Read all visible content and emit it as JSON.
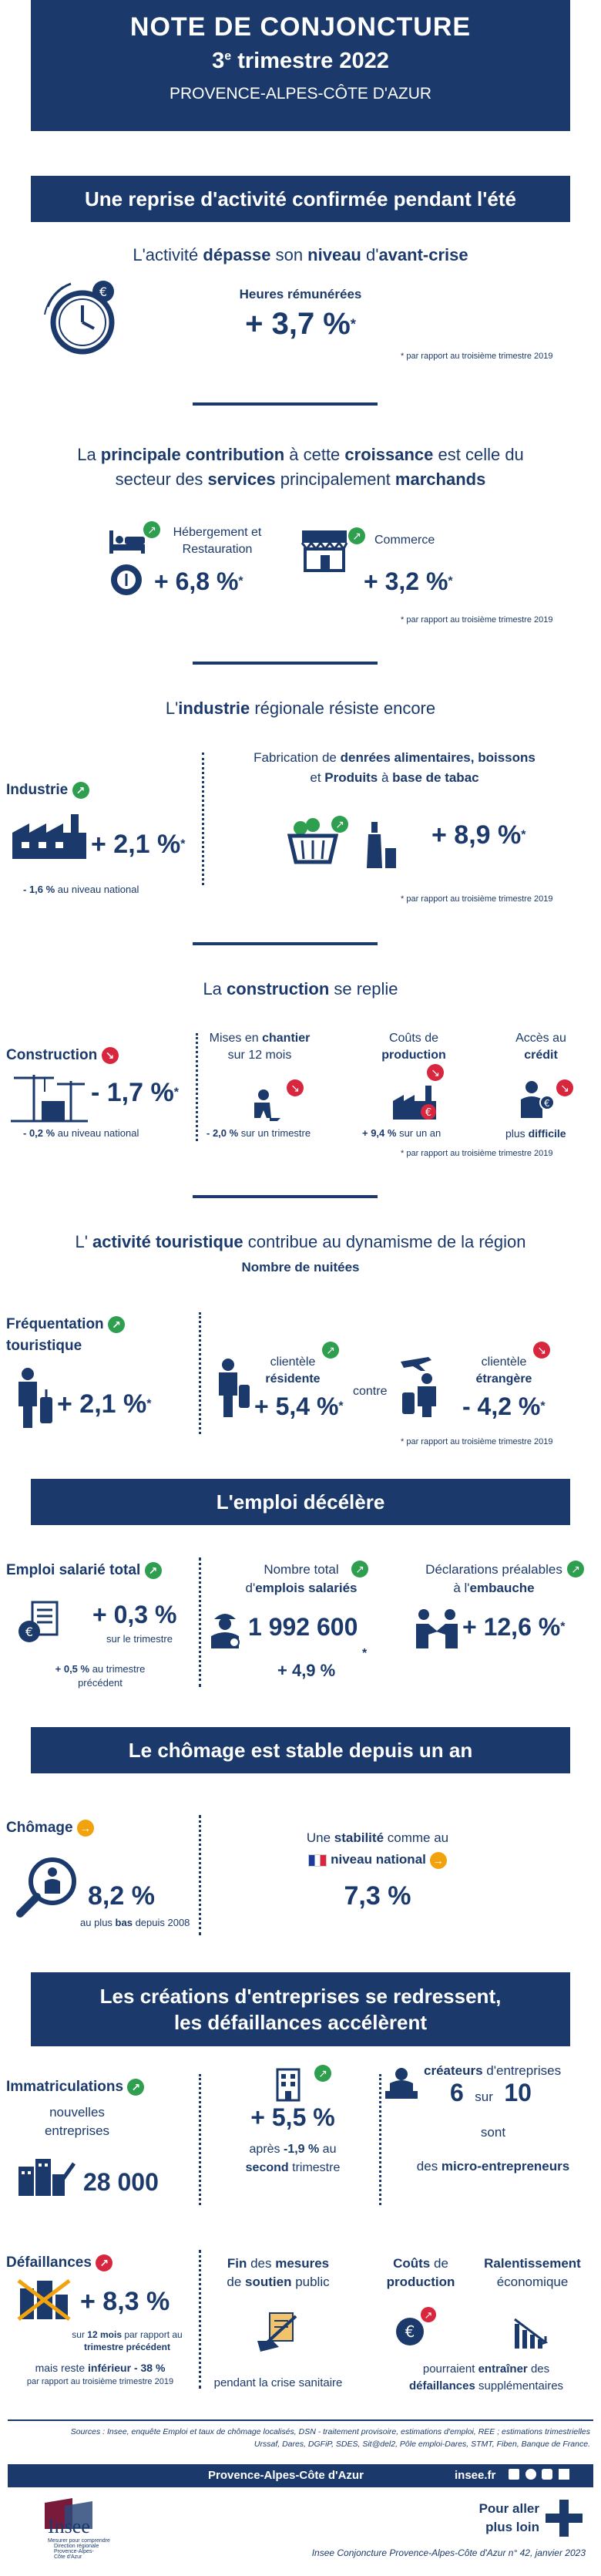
{
  "header": {
    "title": "NOTE DE CONJONCTURE",
    "quarter_num": "3",
    "quarter_sup": "e",
    "quarter_rest": " trimestre 2022",
    "region": "PROVENCE-ALPES-CÔTE D'AZUR"
  },
  "section1": {
    "banner": "Une reprise d'activité confirmée pendant l'été",
    "line_a": "L'activité ",
    "line_b": "dépasse",
    "line_c": " son ",
    "line_d": "niveau",
    "line_e": " d'",
    "line_f": "avant-crise",
    "hours_label": "Heures rémunérées",
    "hours_value": "+ 3,7 %",
    "star": "*",
    "note": "* par rapport au troisième trimestre 2019"
  },
  "section2": {
    "line1_a": "La ",
    "line1_b": "principale contribution",
    "line1_c": " à cette ",
    "line1_d": "croissance",
    "line1_e": " est celle du",
    "line2_a": "secteur des ",
    "line2_b": "services",
    "line2_c": " principalement ",
    "line2_d": "marchands",
    "hotel_label": "Hébergement et Restauration",
    "hotel_value": "+ 6,8 %",
    "commerce_label": "Commerce",
    "commerce_value": "+ 3,2 %",
    "note": "* par rapport au troisième trimestre 2019"
  },
  "section3": {
    "title_a": "L'",
    "title_b": "industrie",
    "title_c": " régionale résiste encore",
    "industry_label": "Industrie",
    "industry_value": "+ 2,1 %",
    "national_a": "- 1,6 %",
    "national_b": " au niveau national",
    "food_line1_a": "Fabrication de ",
    "food_line1_b": "denrées alimentaires, boissons",
    "food_line2_a": "et ",
    "food_line2_b": "Produits",
    "food_line2_c": " à ",
    "food_line2_d": "base de tabac",
    "food_value": "+ 8,9 %",
    "note": "* par rapport au troisième trimestre 2019"
  },
  "section4": {
    "title_a": "La ",
    "title_b": "construction",
    "title_c": " se replie",
    "constr_label": "Construction",
    "constr_value": "- 1,7 %",
    "national_a": "- 0,2 %",
    "national_b": " au niveau national",
    "mises_a": "Mises en ",
    "mises_b": "chantier",
    "mises_c": "sur 12 mois",
    "mises_val_a": "- 2,0 %",
    "mises_val_b": " sur un trimestre",
    "couts_a": "Coûts de",
    "couts_b": "production",
    "couts_val_a": "+ 9,4 %",
    "couts_val_b": " sur un an",
    "acces_a": "Accès au",
    "acces_b": "crédit",
    "acces_val_a": "plus ",
    "acces_val_b": "difficile",
    "note": "* par rapport au troisième trimestre 2019"
  },
  "section5": {
    "title_a": "L' ",
    "title_b": "activité touristique",
    "title_c": " contribue au dynamisme de la région",
    "subtitle": "Nombre de nuitées",
    "freq_a": "Fréquentation",
    "freq_b": "touristique",
    "freq_value": "+ 2,1 %",
    "resid_a": "clientèle",
    "resid_b": "résidente",
    "resid_value": "+ 5,4 %",
    "contre": "contre",
    "etr_a": "clientèle",
    "etr_b": "étrangère",
    "etr_value": "- 4,2 %",
    "note": "* par rapport au troisième trimestre 2019"
  },
  "section6": {
    "banner": "L'emploi décélère",
    "emploi_label": "Emploi salarié total",
    "emploi_value": "+ 0,3 %",
    "emploi_sub": "sur le trimestre",
    "emploi_nat_a": "+ 0,5 %",
    "emploi_nat_b": "  au  trimestre",
    "emploi_nat_c": "précédent",
    "nombre_a": "Nombre total",
    "nombre_b": "d'",
    "nombre_c": "emplois salariés",
    "nombre_value": "1 992 600",
    "nombre_growth": "+ 4,9 %",
    "decl_a": "Déclarations préalables",
    "decl_b": "à l'",
    "decl_c": "embauche",
    "decl_value": "+ 12,6 %"
  },
  "section7": {
    "banner": "Le chômage est stable depuis un an",
    "chomage_label": "Chômage",
    "chomage_value": "8,2 %",
    "chomage_sub_a": "au plus ",
    "chomage_sub_b": "bas",
    "chomage_sub_c": " depuis 2008",
    "stab_a": "Une ",
    "stab_b": "stabilité",
    "stab_c": " comme au",
    "stab_d": "niveau national",
    "nat_value": "7,3 %"
  },
  "section8": {
    "banner_line1": "Les créations d'entreprises se redressent,",
    "banner_line2": "les défaillances accélèrent",
    "immat_label": "Immatriculations",
    "immat_sub1": "nouvelles",
    "immat_sub2": "entreprises",
    "immat_value": "28 000",
    "immat_growth": "+ 5,5 %",
    "immat_after_a": "après ",
    "immat_after_b": "-1,9 %",
    "immat_after_c": " au",
    "immat_after_d": "second",
    "immat_after_e": " trimestre",
    "createurs_a": "créateurs",
    "createurs_b": " d'entreprises",
    "createurs_6": "6",
    "createurs_sur": "sur",
    "createurs_10": "10",
    "createurs_sont": "sont",
    "createurs_c": "des ",
    "createurs_d": "micro-entrepreneurs",
    "defaill_label": "Défaillances",
    "defaill_value": "+ 8,3 %",
    "defaill_sub_a": "sur ",
    "defaill_sub_b": "12 mois",
    "defaill_sub_c": " par rapport au",
    "defaill_sub_d": "trimestre précédent",
    "defaill_nat_a": "mais reste ",
    "defaill_nat_b": "inférieur",
    "defaill_nat_c": " - 38 %",
    "defaill_nat_d": "par rapport au troisième trimestre 2019",
    "fin_a": "Fin",
    "fin_b": " des ",
    "fin_c": "mesures",
    "fin_d": "de ",
    "fin_e": "soutien",
    "fin_f": " public",
    "fin_g": "pendant la crise sanitaire",
    "couts_a": "Coûts",
    "couts_b": " de",
    "couts_c": "production",
    "ral_a": "Ralentissement",
    "ral_b": "économique",
    "ral_c": "pourraient ",
    "ral_d": "entraîner",
    "ral_e": " des",
    "ral_f": "défaillances",
    "ral_g": " supplémentaires"
  },
  "footer": {
    "sources_line1": "Sources : Insee, enquête Emploi et taux de chômage localisés, DSN - traitement provisoire, estimations d'emploi, REE ;  estimations trimestrielles",
    "sources_line2": "Urssaf, Dares, DGFiP, SDES, Sit@del2, Pôle emploi-Dares, STMT, Fiben, Banque de France.",
    "region_bar": "Provence-Alpes-Côte d'Azur",
    "site": "insee.fr",
    "logo": "Insee",
    "logo_sub1": "Mesurer pour comprendre",
    "logo_sub2": "Direction régionale",
    "logo_sub3": "Provence-Alpes-",
    "logo_sub4": "Côte d'Azur",
    "more_a": "Pour aller",
    "more_b": "plus loin",
    "ref": "Insee Conjoncture Provence-Alpes-Côte d'Azur n° 42, janvier 2023"
  },
  "colors": {
    "navy": "#1b3a6b",
    "up": "#2e9e4f",
    "down": "#d7263d",
    "stable": "#f2a20c"
  }
}
